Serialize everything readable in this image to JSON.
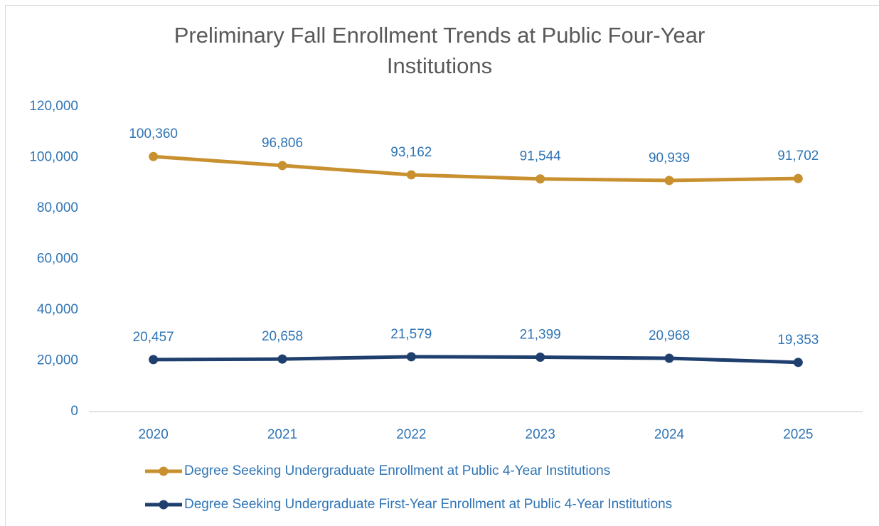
{
  "chart_data": {
    "type": "line",
    "title": "Preliminary Fall Enrollment Trends at Public Four-Year Institutions",
    "categories": [
      "2020",
      "2021",
      "2022",
      "2023",
      "2024",
      "2025"
    ],
    "series": [
      {
        "name": "Degree Seeking Undergraduate Enrollment at Public 4-Year Institutions",
        "color": "#c8902f",
        "values": [
          100360,
          96806,
          93162,
          91544,
          90939,
          91702
        ],
        "value_labels": [
          "100,360",
          "96,806",
          "93,162",
          "91,544",
          "90,939",
          "91,702"
        ]
      },
      {
        "name": "Degree Seeking Undergraduate First-Year Enrollment at Public 4-Year Institutions",
        "color": "#1f3f6e",
        "values": [
          20457,
          20658,
          21579,
          21399,
          20968,
          19353
        ],
        "value_labels": [
          "20,457",
          "20,658",
          "21,579",
          "21,399",
          "20,968",
          "19,353"
        ]
      }
    ],
    "ylim": [
      0,
      120000
    ],
    "yticks": [
      0,
      {
        "value": 20000,
        "label": "20,000"
      },
      {
        "value": 40000,
        "label": "40,000"
      },
      {
        "value": 60000,
        "label": "60,000"
      },
      {
        "value": 80000,
        "label": "80,000"
      },
      {
        "value": 100000,
        "label": "100,000"
      },
      {
        "value": 120000,
        "label": "120,000"
      }
    ],
    "grid": false,
    "legend": "bottom"
  }
}
